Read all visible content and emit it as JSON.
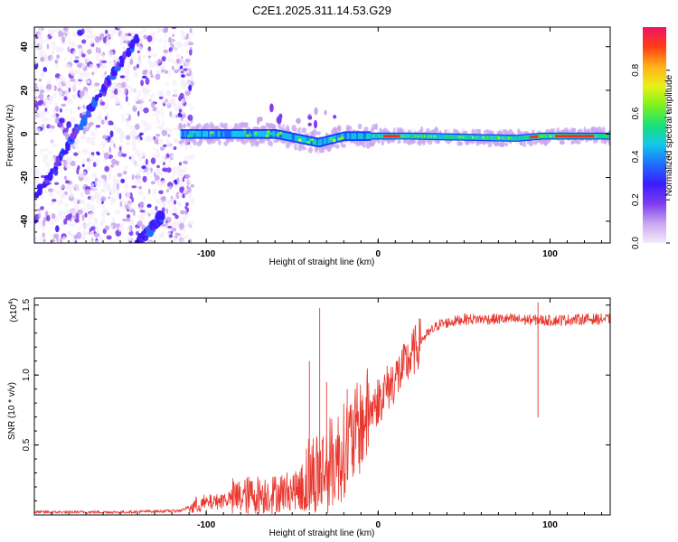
{
  "title": "C2E1.2025.311.14.53.G29",
  "chart_data": [
    {
      "type": "heatmap",
      "name": "spectrogram",
      "xlabel": "Height of straight line (km)",
      "ylabel": "Frequency (Hz)",
      "xlim": [
        -200,
        135
      ],
      "ylim": [
        -50,
        49
      ],
      "xticks": [
        -100,
        0,
        100
      ],
      "yticks": [
        -40,
        -20,
        0,
        20,
        40
      ],
      "colorbar": {
        "label": "Normalized spectral amplitude",
        "range": [
          0,
          1
        ],
        "ticks": [
          "0.0",
          "0.2",
          "0.4",
          "0.6",
          "0.8"
        ],
        "tick_values": [
          0.0,
          0.2,
          0.4,
          0.6,
          0.8
        ],
        "colors": [
          "#f4ecfb",
          "#c9a6f0",
          "#7e3df0",
          "#3b1cff",
          "#1e6dff",
          "#12c8e8",
          "#18e07a",
          "#7bf21d",
          "#e9f11a",
          "#ffb016",
          "#ff3d14",
          "#ee1463"
        ]
      },
      "features": [
        {
          "name": "noise region",
          "x_range": [
            -200,
            -112
          ]
        },
        {
          "name": "diagonal streak upper",
          "points": [
            [
              -200,
              -30
            ],
            [
              -140,
              45
            ]
          ]
        },
        {
          "name": "diagonal streak lower",
          "points": [
            [
              -140,
              -50
            ],
            [
              -125,
              -37
            ]
          ]
        },
        {
          "name": "tracked signal band",
          "x_range": [
            -115,
            135
          ],
          "frequency_hz": [
            [
              -115,
              0
            ],
            [
              -60,
              0
            ],
            [
              -35,
              -4
            ],
            [
              -20,
              -1
            ],
            [
              0,
              -1
            ],
            [
              20,
              -1
            ],
            [
              80,
              -2
            ],
            [
              95,
              -1
            ],
            [
              135,
              -1
            ]
          ]
        }
      ]
    },
    {
      "type": "line",
      "name": "snr",
      "xlabel": "Height of straight line (km)",
      "ylabel": "SNR (10 * v/v)",
      "scale_label": "(x10",
      "scale_exponent": "4",
      "xlim": [
        -200,
        135
      ],
      "ylim": [
        0,
        1.55
      ],
      "xticks": [
        -100,
        0,
        100
      ],
      "yticks": [
        0.5,
        1.0,
        1.5
      ],
      "ytick_labels": [
        "0.5",
        "1.0",
        "1.5"
      ],
      "color": "#e8382f",
      "series": [
        {
          "name": "SNR",
          "x": [
            -200,
            -150,
            -115,
            -105,
            -90,
            -75,
            -60,
            -45,
            -35,
            -25,
            -15,
            -5,
            5,
            15,
            25,
            35,
            50,
            75,
            100,
            120,
            135
          ],
          "y": [
            0.02,
            0.02,
            0.03,
            0.08,
            0.12,
            0.15,
            0.16,
            0.2,
            0.3,
            0.4,
            0.55,
            0.75,
            0.9,
            1.05,
            1.25,
            1.36,
            1.4,
            1.4,
            1.39,
            1.4,
            1.4
          ]
        }
      ],
      "spikes": [
        [
          -34,
          1.48
        ],
        [
          -40,
          1.1
        ],
        [
          -30,
          0.95
        ],
        [
          -18,
          0.9
        ],
        [
          93,
          1.52
        ]
      ]
    }
  ]
}
